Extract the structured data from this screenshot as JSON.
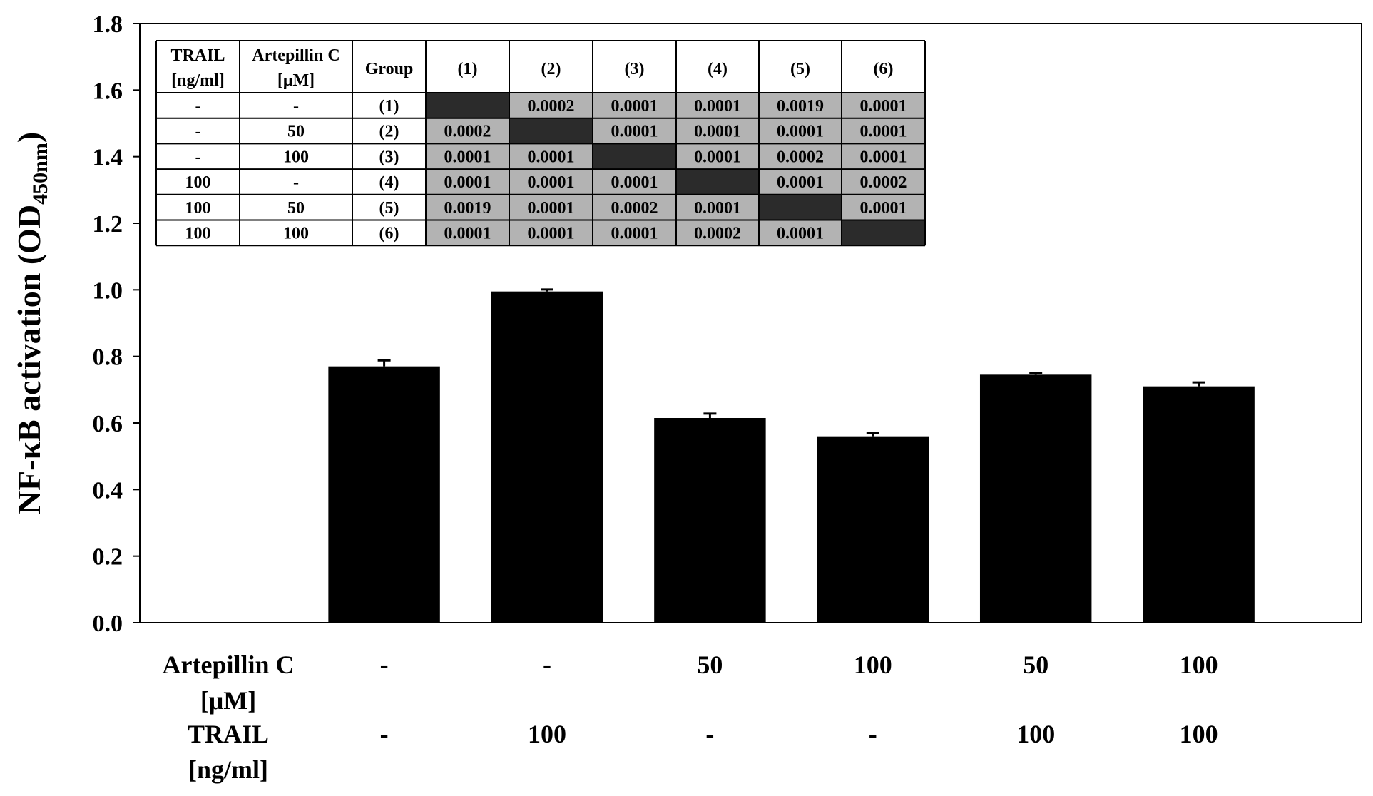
{
  "chart_data": {
    "type": "bar",
    "ylabel": "NF-κB activation (OD",
    "ylabel_sub": "450nm",
    "ylabel_close": ")",
    "ylim": [
      0,
      1.8
    ],
    "yticks": [
      "0.0",
      "0.2",
      "0.4",
      "0.6",
      "0.8",
      "1.0",
      "1.2",
      "1.4",
      "1.6",
      "1.8"
    ],
    "grid": false,
    "bar_color": "#000000",
    "values": [
      0.77,
      0.995,
      0.615,
      0.56,
      0.745,
      0.71
    ],
    "errors": [
      0.018,
      0.006,
      0.013,
      0.01,
      0.004,
      0.012
    ],
    "condition_rows": [
      {
        "label_line1": "Artepillin C",
        "label_line2": "[μM]",
        "values": [
          "-",
          "-",
          "50",
          "100",
          "50",
          "100"
        ]
      },
      {
        "label_line1": "TRAIL",
        "label_line2": "[ng/ml]",
        "values": [
          "-",
          "100",
          "-",
          "-",
          "100",
          "100"
        ]
      }
    ]
  },
  "pvalue_table": {
    "header": {
      "trail_line1": "TRAIL",
      "trail_line2": "[ng/ml]",
      "artepillin_line1": "Artepillin C",
      "artepillin_line2": "[μM]",
      "group": "Group",
      "columns": [
        "(1)",
        "(2)",
        "(3)",
        "(4)",
        "(5)",
        "(6)"
      ]
    },
    "rows": [
      {
        "trail": "-",
        "artepillin": "-",
        "group": "(1)",
        "cells": [
          "",
          "0.0002",
          "0.0001",
          "0.0001",
          "0.0019",
          "0.0001"
        ]
      },
      {
        "trail": "-",
        "artepillin": "50",
        "group": "(2)",
        "cells": [
          "0.0002",
          "",
          "0.0001",
          "0.0001",
          "0.0001",
          "0.0001"
        ]
      },
      {
        "trail": "-",
        "artepillin": "100",
        "group": "(3)",
        "cells": [
          "0.0001",
          "0.0001",
          "",
          "0.0001",
          "0.0002",
          "0.0001"
        ]
      },
      {
        "trail": "100",
        "artepillin": "-",
        "group": "(4)",
        "cells": [
          "0.0001",
          "0.0001",
          "0.0001",
          "",
          "0.0001",
          "0.0002"
        ]
      },
      {
        "trail": "100",
        "artepillin": "50",
        "group": "(5)",
        "cells": [
          "0.0019",
          "0.0001",
          "0.0002",
          "0.0001",
          "",
          "0.0001"
        ]
      },
      {
        "trail": "100",
        "artepillin": "100",
        "group": "(6)",
        "cells": [
          "0.0001",
          "0.0001",
          "0.0001",
          "0.0002",
          "0.0001",
          ""
        ]
      }
    ],
    "cell_color": "#b3b3b3",
    "diagonal_color": "#2b2b2b"
  }
}
